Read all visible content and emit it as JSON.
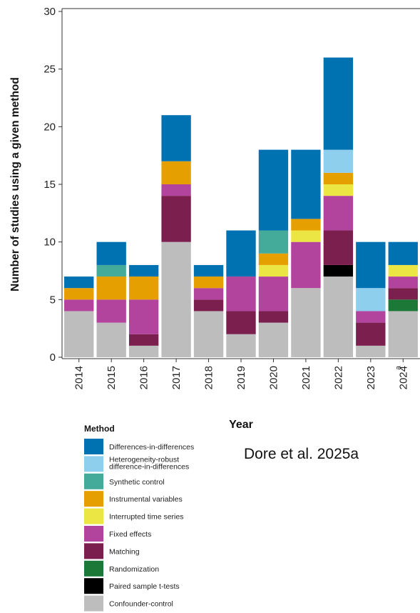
{
  "chart_data": {
    "type": "bar",
    "stacked": true,
    "ylabel": "Number of studies using a given method",
    "xlabel": "Year",
    "ylim": [
      0,
      30
    ],
    "yticks": [
      0,
      5,
      10,
      15,
      20,
      25,
      30
    ],
    "grid": false,
    "legend_position": "bottom-left",
    "legend_title": "Method",
    "categories": [
      "2014",
      "2015",
      "2016",
      "2017",
      "2018",
      "2019",
      "2020",
      "2021",
      "2022",
      "2023",
      "2024"
    ],
    "category_superscripts": [
      "",
      "",
      "",
      "",
      "",
      "",
      "",
      "",
      "",
      "",
      "a"
    ],
    "series": [
      {
        "name": "Confounder-control",
        "color": "#bdbdbd",
        "values": [
          4,
          3,
          1,
          10,
          4,
          2,
          3,
          6,
          7,
          1,
          4
        ]
      },
      {
        "name": "Paired sample t-tests",
        "color": "#000000",
        "values": [
          0,
          0,
          0,
          0,
          0,
          0,
          0,
          0,
          1,
          0,
          0
        ]
      },
      {
        "name": "Randomization",
        "color": "#1b7837",
        "values": [
          0,
          0,
          0,
          0,
          0,
          0,
          0,
          0,
          0,
          0,
          1
        ]
      },
      {
        "name": "Matching",
        "color": "#7b1f4e",
        "values": [
          0,
          0,
          1,
          4,
          1,
          2,
          1,
          0,
          3,
          2,
          1
        ]
      },
      {
        "name": "Fixed effects",
        "color": "#b3449e",
        "values": [
          1,
          2,
          3,
          1,
          1,
          3,
          3,
          4,
          3,
          1,
          1
        ]
      },
      {
        "name": "Interrupted time series",
        "color": "#ece645",
        "values": [
          0,
          0,
          0,
          0,
          0,
          0,
          1,
          1,
          1,
          0,
          1
        ]
      },
      {
        "name": "Instrumental variables",
        "color": "#e69f00",
        "values": [
          1,
          2,
          2,
          2,
          1,
          0,
          1,
          1,
          1,
          0,
          0
        ]
      },
      {
        "name": "Synthetic control",
        "color": "#44aa99",
        "values": [
          0,
          1,
          0,
          0,
          0,
          0,
          2,
          0,
          0,
          0,
          0
        ]
      },
      {
        "name": "Heterogeneity-robust difference-in-differences",
        "color": "#8ecfee",
        "values": [
          0,
          0,
          0,
          0,
          0,
          0,
          0,
          0,
          2,
          2,
          0
        ]
      },
      {
        "name": "Differences-in-differences",
        "color": "#0072b2",
        "values": [
          1,
          2,
          1,
          4,
          1,
          4,
          7,
          6,
          8,
          4,
          2
        ]
      }
    ],
    "legend": [
      {
        "label": [
          "Differences-in-differences"
        ],
        "color": "#0072b2"
      },
      {
        "label": [
          "Heterogeneity-robust",
          "difference-in-differences"
        ],
        "color": "#8ecfee"
      },
      {
        "label": [
          "Synthetic control"
        ],
        "color": "#44aa99"
      },
      {
        "label": [
          "Instrumental variables"
        ],
        "color": "#e69f00"
      },
      {
        "label": [
          "Interrupted time series"
        ],
        "color": "#ece645"
      },
      {
        "label": [
          "Fixed effects"
        ],
        "color": "#b3449e"
      },
      {
        "label": [
          "Matching"
        ],
        "color": "#7b1f4e"
      },
      {
        "label": [
          "Randomization"
        ],
        "color": "#1b7837"
      },
      {
        "label": [
          "Paired sample t-tests"
        ],
        "color": "#000000"
      },
      {
        "label": [
          "Confounder-control"
        ],
        "color": "#bdbdbd"
      }
    ]
  },
  "credit": "Dore et al. 2025a"
}
